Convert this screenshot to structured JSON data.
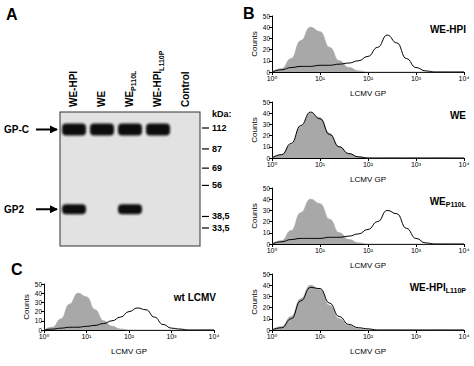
{
  "figure": {
    "panel_letters": [
      "A",
      "B",
      "C"
    ]
  },
  "blot": {
    "lanes": [
      {
        "base": "WE-HPI"
      },
      {
        "base": "WE"
      },
      {
        "base": "WE",
        "sub": "P110L"
      },
      {
        "base": "WE-HPI",
        "sub": "L110P"
      },
      {
        "base": "Control"
      }
    ],
    "unit": "kDa:",
    "ladder": [
      112,
      87,
      69,
      56,
      {
        "value": 38.5,
        "label": "38,5"
      },
      {
        "value": 33.5,
        "label": "33,5"
      }
    ],
    "bands": [
      {
        "label": "GP-C",
        "kda": 110,
        "lanes": [
          0,
          1,
          2,
          3
        ]
      },
      {
        "label": "GP2",
        "kda": 42,
        "lanes": [
          0,
          2
        ]
      }
    ]
  },
  "chart_data": [
    {
      "type": "line",
      "title": {
        "base": "WE-HPI"
      },
      "x_label": "LCMV GP",
      "y_label": "Counts",
      "x": [
        1,
        1.585,
        2.512,
        3.981,
        6.31,
        10,
        15.85,
        25.12,
        39.81,
        63.1,
        100,
        158.5,
        251.2,
        398.1,
        631,
        1000,
        1585,
        2512,
        3981,
        6310,
        10000
      ],
      "series": [
        {
          "type": "area",
          "color": "#a8a8a8",
          "values": [
            0,
            3,
            12,
            28,
            40,
            36,
            22,
            10,
            4,
            1,
            0,
            0,
            0,
            0,
            0,
            0,
            0,
            0,
            0,
            0,
            0
          ]
        },
        {
          "type": "line",
          "color": "#000000",
          "values": [
            0,
            2,
            4,
            5,
            5,
            6,
            6,
            7,
            8,
            10,
            14,
            22,
            33,
            26,
            12,
            4,
            1,
            0,
            0,
            0,
            0
          ]
        }
      ],
      "log": "x",
      "xlim": [
        1,
        10000
      ],
      "xticks": [
        {
          "value": 1,
          "label": "10⁰"
        },
        {
          "value": 10,
          "label": "10¹"
        },
        {
          "value": 100,
          "label": "10²"
        },
        {
          "value": 1000,
          "label": "10³"
        },
        {
          "value": 10000,
          "label": "10⁴"
        }
      ],
      "ylim": [
        0,
        50
      ],
      "yticks": [
        0,
        10,
        20,
        30,
        40,
        50
      ],
      "grid": false
    },
    {
      "type": "line",
      "title": {
        "base": "WE"
      },
      "x_label": "LCMV GP",
      "y_label": "Counts",
      "x": [
        1,
        1.585,
        2.512,
        3.981,
        6.31,
        10,
        15.85,
        25.12,
        39.81,
        63.1,
        100,
        158.5,
        251.2,
        398.1,
        631,
        1000,
        1585,
        2512,
        3981,
        6310,
        10000
      ],
      "series": [
        {
          "type": "area",
          "color": "#a8a8a8",
          "values": [
            0,
            3,
            12,
            28,
            40,
            36,
            22,
            10,
            4,
            1,
            0,
            0,
            0,
            0,
            0,
            0,
            0,
            0,
            0,
            0,
            0
          ]
        },
        {
          "type": "line",
          "color": "#000000",
          "values": [
            0,
            3,
            13,
            29,
            41,
            35,
            21,
            10,
            4,
            1,
            0,
            0,
            0,
            0,
            0,
            0,
            0,
            0,
            0,
            0,
            0
          ]
        }
      ],
      "log": "x",
      "xlim": [
        1,
        10000
      ],
      "xticks": [
        {
          "value": 1,
          "label": "10⁰"
        },
        {
          "value": 10,
          "label": "10¹"
        },
        {
          "value": 100,
          "label": "10²"
        },
        {
          "value": 1000,
          "label": "10³"
        },
        {
          "value": 10000,
          "label": "10⁴"
        }
      ],
      "ylim": [
        0,
        50
      ],
      "yticks": [
        0,
        10,
        20,
        30,
        40,
        50
      ],
      "grid": false
    },
    {
      "type": "line",
      "title": {
        "base": "WE",
        "sub": "P110L"
      },
      "x_label": "LCMV GP",
      "y_label": "Counts",
      "x": [
        1,
        1.585,
        2.512,
        3.981,
        6.31,
        10,
        15.85,
        25.12,
        39.81,
        63.1,
        100,
        158.5,
        251.2,
        398.1,
        631,
        1000,
        1585,
        2512,
        3981,
        6310,
        10000
      ],
      "series": [
        {
          "type": "area",
          "color": "#a8a8a8",
          "values": [
            0,
            3,
            12,
            28,
            40,
            36,
            22,
            10,
            4,
            1,
            0,
            0,
            0,
            0,
            0,
            0,
            0,
            0,
            0,
            0,
            0
          ]
        },
        {
          "type": "line",
          "color": "#000000",
          "values": [
            0,
            2,
            4,
            5,
            5,
            5,
            6,
            6,
            7,
            9,
            13,
            20,
            30,
            27,
            14,
            5,
            1,
            0,
            0,
            0,
            0
          ]
        }
      ],
      "log": "x",
      "xlim": [
        1,
        10000
      ],
      "xticks": [
        {
          "value": 1,
          "label": "10⁰"
        },
        {
          "value": 10,
          "label": "10¹"
        },
        {
          "value": 100,
          "label": "10²"
        },
        {
          "value": 1000,
          "label": "10³"
        },
        {
          "value": 10000,
          "label": "10⁴"
        }
      ],
      "ylim": [
        0,
        50
      ],
      "yticks": [
        0,
        10,
        20,
        30,
        40,
        50
      ],
      "grid": false
    },
    {
      "type": "line",
      "title": {
        "base": "WE-HPI",
        "sub": "L110P"
      },
      "x_label": "LCMV GP",
      "y_label": "Counts",
      "x": [
        1,
        1.585,
        2.512,
        3.981,
        6.31,
        10,
        15.85,
        25.12,
        39.81,
        63.1,
        100,
        158.5,
        251.2,
        398.1,
        631,
        1000,
        1585,
        2512,
        3981,
        6310,
        10000
      ],
      "series": [
        {
          "type": "area",
          "color": "#a8a8a8",
          "values": [
            0,
            3,
            12,
            28,
            40,
            36,
            22,
            10,
            4,
            1,
            0,
            0,
            0,
            0,
            0,
            0,
            0,
            0,
            0,
            0,
            0
          ]
        },
        {
          "type": "line",
          "color": "#000000",
          "values": [
            0,
            2,
            10,
            26,
            38,
            37,
            24,
            12,
            5,
            2,
            1,
            0,
            0,
            0,
            0,
            0,
            0,
            0,
            0,
            0,
            0
          ]
        }
      ],
      "log": "x",
      "xlim": [
        1,
        10000
      ],
      "xticks": [
        {
          "value": 1,
          "label": "10⁰"
        },
        {
          "value": 10,
          "label": "10¹"
        },
        {
          "value": 100,
          "label": "10²"
        },
        {
          "value": 1000,
          "label": "10³"
        },
        {
          "value": 10000,
          "label": "10⁴"
        }
      ],
      "ylim": [
        0,
        50
      ],
      "yticks": [
        0,
        10,
        20,
        30,
        40,
        50
      ],
      "grid": false
    },
    {
      "type": "line",
      "title": {
        "base": "wt LCMV"
      },
      "x_label": "LCMV GP",
      "y_label": "Counts",
      "x": [
        1,
        1.585,
        2.512,
        3.981,
        6.31,
        10,
        15.85,
        25.12,
        39.81,
        63.1,
        100,
        158.5,
        251.2,
        398.1,
        631,
        1000,
        1585,
        2512,
        3981,
        6310,
        10000
      ],
      "series": [
        {
          "type": "area",
          "color": "#a8a8a8",
          "values": [
            0,
            3,
            12,
            28,
            40,
            36,
            22,
            10,
            4,
            1,
            0,
            0,
            0,
            0,
            0,
            0,
            0,
            0,
            0,
            0,
            0
          ]
        },
        {
          "type": "line",
          "color": "#000000",
          "values": [
            0,
            1,
            2,
            3,
            3,
            4,
            5,
            7,
            10,
            14,
            20,
            24,
            22,
            14,
            6,
            2,
            1,
            0,
            0,
            0,
            0
          ]
        }
      ],
      "log": "x",
      "xlim": [
        1,
        10000
      ],
      "xticks": [
        {
          "value": 1,
          "label": "10⁰"
        },
        {
          "value": 10,
          "label": "10¹"
        },
        {
          "value": 100,
          "label": "10²"
        },
        {
          "value": 1000,
          "label": "10³"
        },
        {
          "value": 10000,
          "label": "10⁴"
        }
      ],
      "ylim": [
        0,
        50
      ],
      "yticks": [
        0,
        10,
        20,
        30,
        40,
        50
      ],
      "grid": false
    }
  ]
}
